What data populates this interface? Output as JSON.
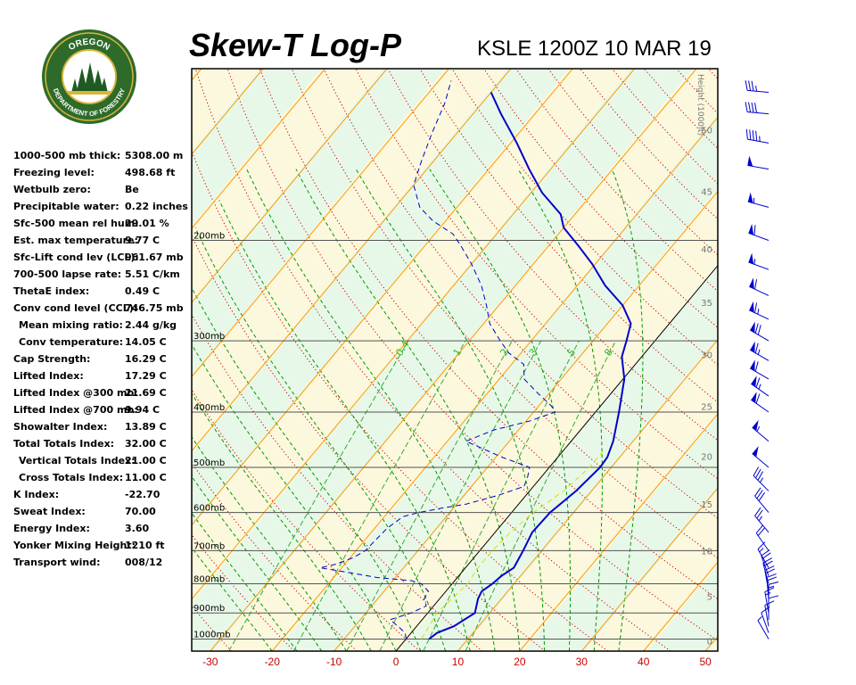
{
  "header": {
    "title": "Skew-T Log-P",
    "subtitle": "KSLE 1200Z 10 MAR 19"
  },
  "logo": {
    "top_text": "OREGON",
    "bottom_text": "DEPARTMENT OF FORESTRY",
    "colors": {
      "ring": "#2e6b2b",
      "gold": "#d9b53a",
      "tree": "#1f5a22"
    }
  },
  "indices": [
    {
      "label": "1000-500 mb thick:",
      "value": "5308.00 m",
      "indent": false
    },
    {
      "label": "Freezing level:",
      "value": "498.68 ft",
      "indent": false
    },
    {
      "label": "Wetbulb zero:",
      "value": "Be",
      "indent": false
    },
    {
      "label": "Precipitable water:",
      "value": "0.22 inches",
      "indent": false
    },
    {
      "label": "Sfc-500 mean rel hum:",
      "value": "29.01 %",
      "indent": false
    },
    {
      "label": "Est. max temperature:",
      "value": "9.77 C",
      "indent": false
    },
    {
      "label": "Sfc-Lift cond lev (LCL):",
      "value": "961.67 mb",
      "indent": false
    },
    {
      "label": "700-500 lapse rate:",
      "value": "5.51 C/km",
      "indent": false
    },
    {
      "label": "ThetaE index:",
      "value": "0.49 C",
      "indent": false
    },
    {
      "label": "Conv cond level (CCL):",
      "value": "746.75 mb",
      "indent": false
    },
    {
      "label": "Mean mixing ratio:",
      "value": "2.44 g/kg",
      "indent": true
    },
    {
      "label": "Conv temperature:",
      "value": "14.05 C",
      "indent": true
    },
    {
      "label": "Cap Strength:",
      "value": "16.29 C",
      "indent": false
    },
    {
      "label": "Lifted Index:",
      "value": "17.29 C",
      "indent": false
    },
    {
      "label": "Lifted Index @300 mb:",
      "value": "21.69 C",
      "indent": false
    },
    {
      "label": "Lifted Index @700 mb:",
      "value": "9.94 C",
      "indent": false
    },
    {
      "label": "Showalter Index:",
      "value": "13.89 C",
      "indent": false
    },
    {
      "label": "Total Totals Index:",
      "value": "32.00 C",
      "indent": false
    },
    {
      "label": "Vertical Totals Index:",
      "value": "21.00 C",
      "indent": true
    },
    {
      "label": "Cross Totals Index:",
      "value": "11.00 C",
      "indent": true
    },
    {
      "label": "K Index:",
      "value": "-22.70",
      "indent": false
    },
    {
      "label": "Sweat Index:",
      "value": "70.00",
      "indent": false
    },
    {
      "label": "Energy Index:",
      "value": "3.60",
      "indent": false
    },
    {
      "label": "Yonker Mixing Height:",
      "value": "1210 ft",
      "indent": false
    },
    {
      "label": "Transport wind:",
      "value": "008/12",
      "indent": false
    }
  ],
  "chart_data": {
    "type": "line",
    "title": "Skew-T Log-P",
    "subtitle": "KSLE 1200Z 10 MAR 19",
    "x_axis": {
      "ticks": [
        -30,
        -20,
        -10,
        0,
        10,
        20,
        30,
        40,
        50
      ],
      "range": [
        -33,
        52
      ],
      "tick_color": "#cc0000"
    },
    "y_axis": {
      "scale": "log",
      "range": [
        1050,
        100
      ],
      "pressure_labels": [
        {
          "p": 1000,
          "label": "1000mb"
        },
        {
          "p": 900,
          "label": "900mb"
        },
        {
          "p": 800,
          "label": "800mb"
        },
        {
          "p": 700,
          "label": "700mb"
        },
        {
          "p": 600,
          "label": "600mb"
        },
        {
          "p": 500,
          "label": "500mb"
        },
        {
          "p": 400,
          "label": "400mb"
        },
        {
          "p": 300,
          "label": "300mb"
        },
        {
          "p": 200,
          "label": "200mb"
        }
      ]
    },
    "height_axis": {
      "label": "Height (1000ft)",
      "ticks": [
        {
          "h": 0,
          "p": 1007
        },
        {
          "h": 5,
          "p": 842
        },
        {
          "h": 10,
          "p": 700
        },
        {
          "h": 15,
          "p": 580
        },
        {
          "h": 20,
          "p": 478
        },
        {
          "h": 25,
          "p": 391
        },
        {
          "h": 30,
          "p": 317
        },
        {
          "h": 35,
          "p": 257
        },
        {
          "h": 40,
          "p": 207
        },
        {
          "h": 45,
          "p": 164
        },
        {
          "h": 50,
          "p": 128
        }
      ]
    },
    "mixing_ratio_labels": [
      "0.4",
      "1",
      "2",
      "3",
      "5",
      "8"
    ],
    "mixing_ratio_values": [
      0.4,
      1,
      2,
      3,
      5,
      8
    ],
    "series": [
      {
        "name": "Temperature",
        "color": "#0000cc",
        "style": "solid",
        "points": [
          [
            1000,
            3.7
          ],
          [
            975,
            4.2
          ],
          [
            950,
            6.0
          ],
          [
            900,
            7.6
          ],
          [
            850,
            6.2
          ],
          [
            825,
            5.8
          ],
          [
            800,
            6.5
          ],
          [
            775,
            6.9
          ],
          [
            750,
            7.8
          ],
          [
            700,
            7.0
          ],
          [
            650,
            6.0
          ],
          [
            600,
            6.2
          ],
          [
            550,
            7.5
          ],
          [
            500,
            8.2
          ],
          [
            480,
            8.0
          ],
          [
            450,
            6.8
          ],
          [
            400,
            3.8
          ],
          [
            350,
            0.2
          ],
          [
            320,
            -3.2
          ],
          [
            300,
            -4.6
          ],
          [
            280,
            -6.2
          ],
          [
            260,
            -10.0
          ],
          [
            240,
            -15.5
          ],
          [
            220,
            -20.5
          ],
          [
            205,
            -25.0
          ],
          [
            190,
            -30.0
          ],
          [
            180,
            -32.3
          ],
          [
            165,
            -38.2
          ],
          [
            150,
            -43.5
          ],
          [
            135,
            -49.0
          ],
          [
            120,
            -55.5
          ],
          [
            110,
            -60.0
          ]
        ]
      },
      {
        "name": "Dewpoint",
        "color": "#0000cc",
        "style": "dashed",
        "points": [
          [
            1000,
            0.0
          ],
          [
            975,
            -1.0
          ],
          [
            950,
            -3.0
          ],
          [
            925,
            -5.2
          ],
          [
            900,
            -2.7
          ],
          [
            875,
            -1.2
          ],
          [
            850,
            -2.5
          ],
          [
            825,
            -2.8
          ],
          [
            800,
            -5.0
          ],
          [
            790,
            -7.0
          ],
          [
            780,
            -13.0
          ],
          [
            765,
            -18.0
          ],
          [
            750,
            -23.5
          ],
          [
            740,
            -21.5
          ],
          [
            720,
            -19.5
          ],
          [
            700,
            -18.5
          ],
          [
            640,
            -18.0
          ],
          [
            610,
            -17.0
          ],
          [
            600,
            -15.0
          ],
          [
            590,
            -12.0
          ],
          [
            580,
            -8.5
          ],
          [
            560,
            -4.5
          ],
          [
            540,
            -1.5
          ],
          [
            520,
            -2.2
          ],
          [
            500,
            -3.2
          ],
          [
            480,
            -9.0
          ],
          [
            450,
            -17.0
          ],
          [
            430,
            -14.0
          ],
          [
            415,
            -9.5
          ],
          [
            400,
            -6.5
          ],
          [
            390,
            -8.0
          ],
          [
            370,
            -12.0
          ],
          [
            350,
            -16.0
          ],
          [
            330,
            -18.0
          ],
          [
            315,
            -22.0
          ],
          [
            300,
            -25.0
          ],
          [
            280,
            -29.0
          ],
          [
            260,
            -32.0
          ],
          [
            240,
            -35.5
          ],
          [
            220,
            -40.0
          ],
          [
            205,
            -44.0
          ],
          [
            195,
            -47.0
          ],
          [
            185,
            -52.0
          ],
          [
            175,
            -56.0
          ],
          [
            160,
            -60.0
          ],
          [
            145,
            -62.0
          ],
          [
            130,
            -64.0
          ],
          [
            115,
            -66.0
          ],
          [
            105,
            -68.0
          ]
        ]
      },
      {
        "name": "Wet-bulb",
        "color": "#dddd00",
        "style": "dashed",
        "points": [
          [
            1000,
            2.5
          ],
          [
            950,
            2.0
          ],
          [
            900,
            1.5
          ],
          [
            850,
            2.0
          ],
          [
            800,
            2.5
          ],
          [
            750,
            2.0
          ],
          [
            700,
            2.0
          ],
          [
            650,
            2.5
          ],
          [
            600,
            3.5
          ],
          [
            550,
            5.5
          ],
          [
            500,
            6.5
          ],
          [
            470,
            6.5
          ]
        ]
      }
    ],
    "wind_barbs": [
      {
        "p": 1000,
        "dir": 330,
        "spd": 8
      },
      {
        "p": 975,
        "dir": 340,
        "spd": 10
      },
      {
        "p": 950,
        "dir": 350,
        "spd": 12
      },
      {
        "p": 925,
        "dir": 0,
        "spd": 14
      },
      {
        "p": 900,
        "dir": 350,
        "spd": 16
      },
      {
        "p": 875,
        "dir": 0,
        "spd": 18
      },
      {
        "p": 850,
        "dir": 355,
        "spd": 20
      },
      {
        "p": 825,
        "dir": 350,
        "spd": 20
      },
      {
        "p": 800,
        "dir": 345,
        "spd": 22
      },
      {
        "p": 775,
        "dir": 340,
        "spd": 22
      },
      {
        "p": 750,
        "dir": 330,
        "spd": 18
      },
      {
        "p": 700,
        "dir": 325,
        "spd": 22
      },
      {
        "p": 650,
        "dir": 320,
        "spd": 25
      },
      {
        "p": 600,
        "dir": 320,
        "spd": 30
      },
      {
        "p": 550,
        "dir": 315,
        "spd": 35
      },
      {
        "p": 500,
        "dir": 310,
        "spd": 50
      },
      {
        "p": 450,
        "dir": 310,
        "spd": 55
      },
      {
        "p": 400,
        "dir": 305,
        "spd": 60
      },
      {
        "p": 375,
        "dir": 305,
        "spd": 65
      },
      {
        "p": 350,
        "dir": 300,
        "spd": 60
      },
      {
        "p": 325,
        "dir": 300,
        "spd": 65
      },
      {
        "p": 300,
        "dir": 300,
        "spd": 70
      },
      {
        "p": 275,
        "dir": 295,
        "spd": 65
      },
      {
        "p": 250,
        "dir": 295,
        "spd": 60
      },
      {
        "p": 225,
        "dir": 290,
        "spd": 55
      },
      {
        "p": 200,
        "dir": 290,
        "spd": 60
      },
      {
        "p": 175,
        "dir": 285,
        "spd": 55
      },
      {
        "p": 150,
        "dir": 280,
        "spd": 50
      },
      {
        "p": 135,
        "dir": 280,
        "spd": 45
      },
      {
        "p": 120,
        "dir": 275,
        "spd": 40
      },
      {
        "p": 110,
        "dir": 275,
        "spd": 35
      }
    ],
    "colors": {
      "isotherm": "#ff9900",
      "dry_adiabat": "#cc0000",
      "moist_adiabat": "#009900",
      "mixing_ratio": "#33aa33",
      "zero_isotherm": "#000000",
      "band_a": "#e8f8e8",
      "band_b": "#fbf8dd",
      "wind": "#0000cc"
    }
  }
}
